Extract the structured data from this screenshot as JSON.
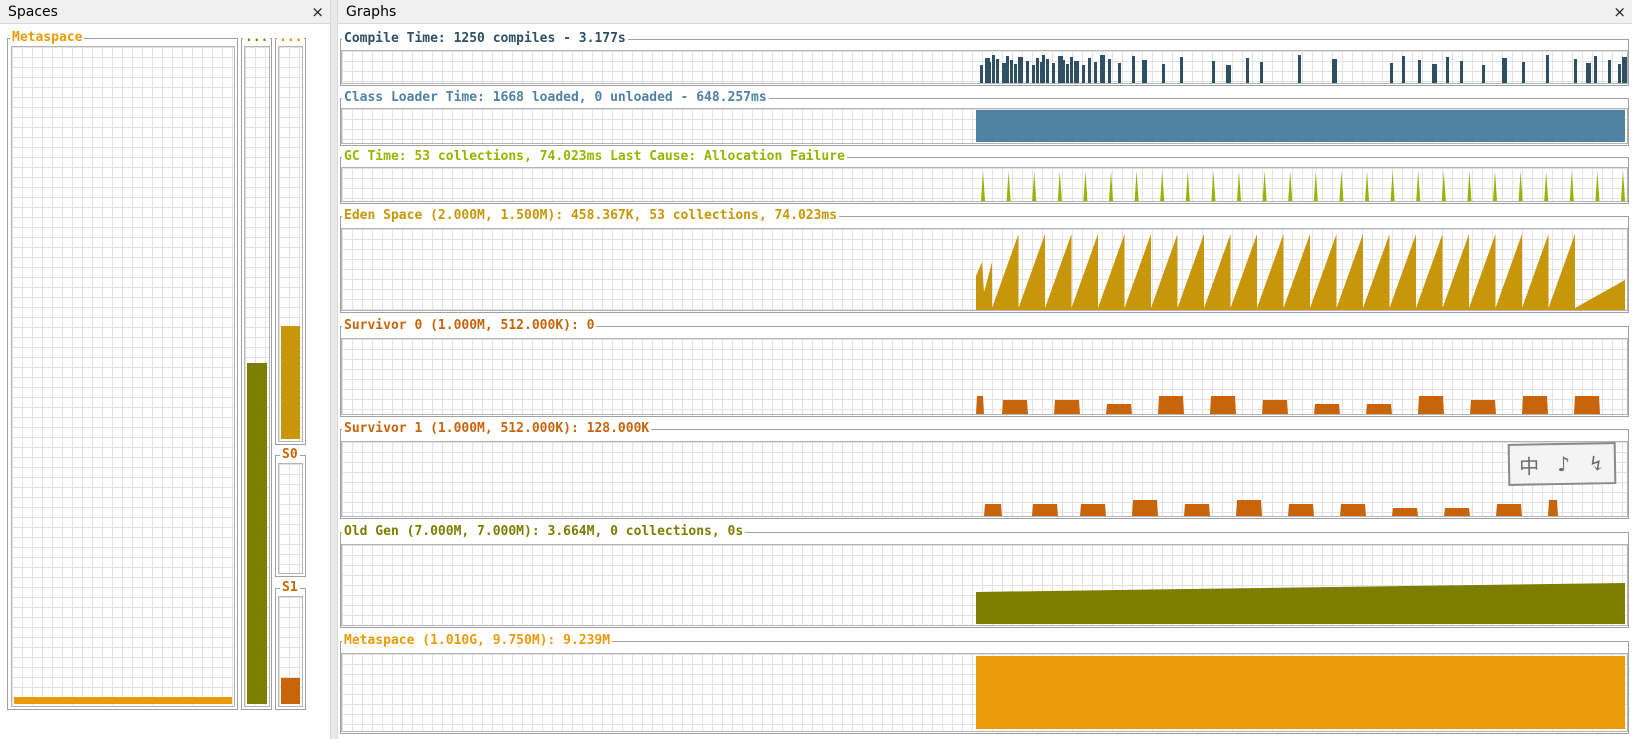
{
  "spaces_panel": {
    "title": "Spaces",
    "close_glyph": "×",
    "metaspace_label": "Metaspace",
    "col2_label": "...",
    "col3_label": "...",
    "s0_label": "S0",
    "s1_label": "S1",
    "metaspace_fill": 0.01,
    "old_gen_fill": 0.52,
    "eden_fill": 0.29,
    "s0_fill": 0.0,
    "s1_fill": 0.25,
    "colors": {
      "metaspace": "#eb9b0a",
      "old_gen": "#7d7d00",
      "eden": "#c8960a",
      "survivor": "#c8640a"
    }
  },
  "graphs_panel": {
    "title": "Graphs",
    "close_glyph": "×",
    "graphs": [
      {
        "id": "compile",
        "label": "Compile Time: 1250 compiles - 3.177s",
        "color": "#2d5064",
        "kind": "spikes"
      },
      {
        "id": "classloader",
        "label": "Class Loader Time: 1668 loaded, 0 unloaded - 648.257ms",
        "color": "#4f82a3",
        "kind": "block"
      },
      {
        "id": "gc",
        "label": "GC Time: 53 collections, 74.023ms Last Cause: Allocation Failure",
        "color": "#96b400",
        "kind": "thin_spikes"
      },
      {
        "id": "eden",
        "label": "Eden Space (2.000M, 1.500M): 458.367K, 53 collections, 74.023ms",
        "color": "#c8960a",
        "kind": "sawtooth"
      },
      {
        "id": "s0",
        "label": "Survivor 0 (1.000M, 512.000K): 0",
        "color": "#c8640a",
        "kind": "blocks_a"
      },
      {
        "id": "s1",
        "label": "Survivor 1 (1.000M, 512.000K): 128.000K",
        "color": "#c8640a",
        "kind": "blocks_b"
      },
      {
        "id": "oldgen",
        "label": "Old Gen (7.000M, 7.000M): 3.664M, 0 collections, 0s",
        "color": "#7d7d00",
        "kind": "ramp"
      },
      {
        "id": "metaspace",
        "label": "Metaspace (1.010G, 9.750M): 9.239M",
        "color": "#eb9b0a",
        "kind": "flat"
      }
    ]
  },
  "ime_indicator": {
    "chars": [
      "中",
      "♪",
      "↯"
    ]
  }
}
